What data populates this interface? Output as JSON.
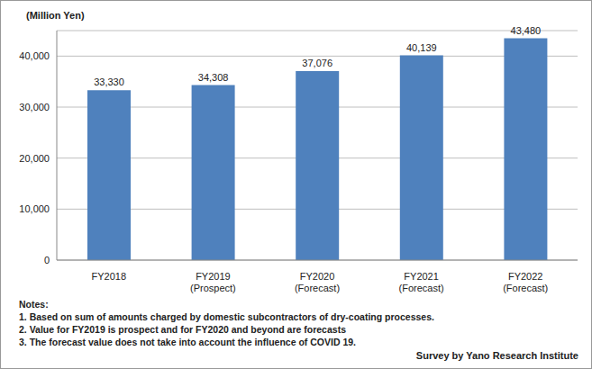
{
  "chart_data": {
    "type": "bar",
    "y_label": "(Million Yen)",
    "categories": [
      "FY2018",
      "FY2019\n(Prospect)",
      "FY2020\n(Forecast)",
      "FY2021\n(Forecast)",
      "FY2022\n(Forecast)"
    ],
    "values": [
      33330,
      34308,
      37076,
      40139,
      43480
    ],
    "value_labels": [
      "33,330",
      "34,308",
      "37,076",
      "40,139",
      "43,480"
    ],
    "data_labels": true,
    "color": "#4f81bd",
    "ylim": [
      0,
      45000
    ],
    "yticks": [
      0,
      {
        "value": 10000,
        "label": "10,000"
      },
      {
        "value": 20000,
        "label": "20,000"
      },
      {
        "value": 30000,
        "label": "30,000"
      },
      {
        "value": 40000,
        "label": "40,000"
      }
    ],
    "grid": true,
    "notes": [
      "Notes:",
      "1. Based on sum of amounts charged by domestic subcontractors of dry-coating processes.",
      "2. Value for FY2019 is prospect and for FY2020 and beyond are forecasts",
      "3. The forecast value does not take into account the influence of COVID 19."
    ],
    "source": "Survey by Yano Research Institute"
  }
}
